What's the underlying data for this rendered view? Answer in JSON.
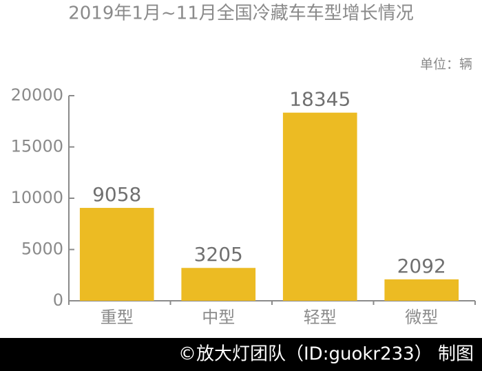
{
  "chart_data": {
    "type": "bar",
    "title": "2019年1月~11月全国冷藏车车型增长情况",
    "unit_label": "单位：辆",
    "credit": "©放大灯团队（ID:guokr233） 制图",
    "categories": [
      "重型",
      "中型",
      "轻型",
      "微型"
    ],
    "values": [
      9058,
      3205,
      18345,
      2092
    ],
    "color": "#ecbb23",
    "ylim": [
      0,
      20000
    ],
    "yticks": [
      0,
      5000,
      10000,
      15000,
      20000
    ],
    "grid": false
  }
}
